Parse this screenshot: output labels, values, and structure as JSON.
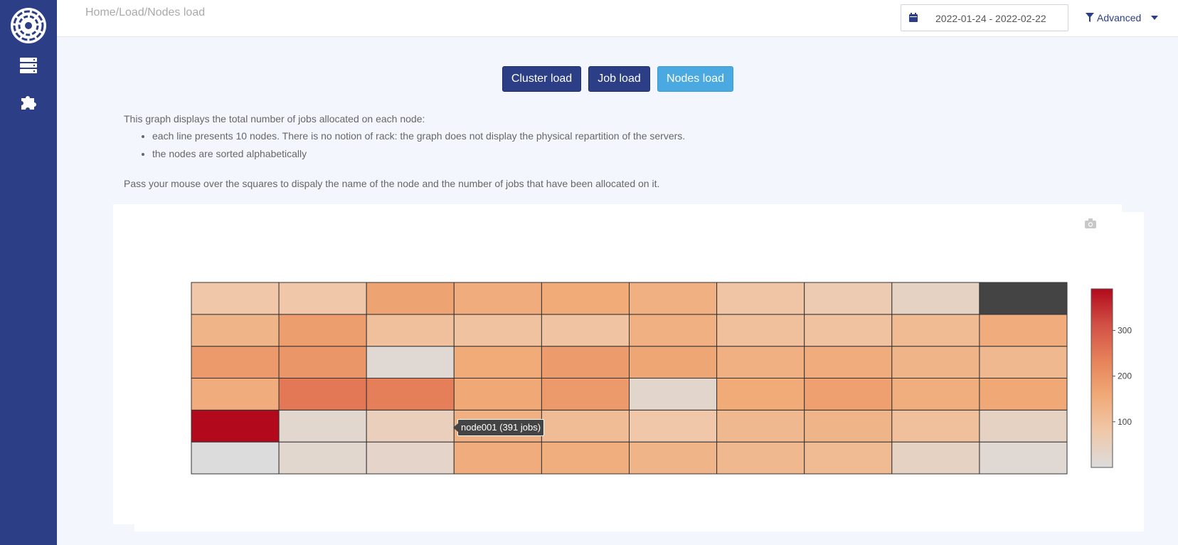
{
  "breadcrumb": "Home/Load/Nodes load",
  "date_range": "2022-01-24 - 2022-02-22",
  "advanced_label": "Advanced",
  "buttons": {
    "cluster": "Cluster load",
    "job": "Job load",
    "nodes": "Nodes load"
  },
  "description": {
    "intro": "This graph displays the total number of jobs allocated on each node:",
    "bullets": [
      "each line presents 10 nodes. There is no notion of rack: the graph does not display the physical repartition of the servers.",
      "the nodes are sorted alphabetically"
    ],
    "hint": "Pass your mouse over the squares to dispaly the name of the node and the number of jobs that have been allocated on it."
  },
  "tooltip": "node001 (391 jobs)",
  "colors": {
    "sidebar": "#2c3e85",
    "button_primary": "#2c3e85",
    "button_active": "#49a9e0",
    "empty_cell": "#444444"
  },
  "icons": {
    "logo": "app-logo-icon",
    "servers": "servers-icon",
    "plugins": "puzzle-icon",
    "calendar": "calendar-icon",
    "filter": "filter-icon",
    "camera": "camera-icon"
  },
  "chart_data": {
    "type": "heatmap",
    "rows": 6,
    "cols": 10,
    "values": [
      [
        0,
        20,
        30,
        150,
        145,
        130,
        120,
        115,
        40,
        15
      ],
      [
        391,
        20,
        50,
        140,
        110,
        80,
        120,
        130,
        100,
        40
      ],
      [
        150,
        250,
        240,
        160,
        190,
        25,
        155,
        175,
        145,
        160
      ],
      [
        190,
        195,
        15,
        155,
        185,
        165,
        140,
        150,
        130,
        120
      ],
      [
        130,
        180,
        100,
        95,
        90,
        140,
        100,
        95,
        115,
        150
      ],
      [
        80,
        80,
        170,
        150,
        155,
        140,
        85,
        65,
        40,
        null
      ]
    ],
    "colorscale_ticks": [
      100,
      200,
      300
    ],
    "zmin": 0,
    "zmax": 391
  }
}
